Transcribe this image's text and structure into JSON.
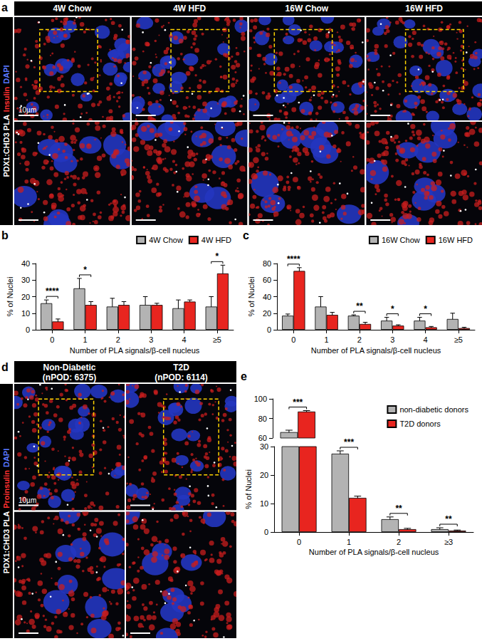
{
  "image_panels": [
    {
      "label": "a",
      "columns": [
        {
          "title": "4W Chow"
        },
        {
          "title": "4W HFD"
        },
        {
          "title": "16W Chow"
        },
        {
          "title": "16W HFD"
        }
      ],
      "side_label": [
        {
          "text": "PDX1:CHD3 PLA",
          "color": "#ffffff"
        },
        {
          "text": "Insulin",
          "color": "#ff3030"
        },
        {
          "text": "DAPI",
          "color": "#5a78ff"
        }
      ],
      "scale_bar": "10µm"
    },
    {
      "label": "d",
      "columns": [
        {
          "title": "Non-Diabetic",
          "subtitle": "(nPOD: 6375)"
        },
        {
          "title": "T2D",
          "subtitle": "(nPOD: 6114)"
        }
      ],
      "side_label": [
        {
          "text": "PDX1:CHD3 PLA",
          "color": "#ffffff"
        },
        {
          "text": "Proinsulin",
          "color": "#ff3030"
        },
        {
          "text": "DAPI",
          "color": "#5a78ff"
        }
      ],
      "scale_bar": "10µm"
    }
  ],
  "chart_data": [
    {
      "label": "b",
      "type": "bar",
      "categories": [
        "0",
        "1",
        "2",
        "3",
        "4",
        "≥5"
      ],
      "xlabel": "Number of PLA signals/β-cell nucleus",
      "ylabel": "% of Nuclei",
      "ylim": [
        0,
        40
      ],
      "yticks": [
        0,
        10,
        20,
        30,
        40
      ],
      "grid": false,
      "legend": "top-right",
      "series": [
        {
          "name": "4W Chow",
          "color": "#b3b3b3",
          "values": [
            16,
            25,
            14,
            15,
            13,
            14
          ],
          "errors": [
            2,
            6,
            5,
            5,
            5,
            6
          ]
        },
        {
          "name": "4W HFD",
          "color": "#e8251f",
          "values": [
            5,
            15,
            15,
            15,
            17,
            34
          ],
          "errors": [
            1.5,
            2,
            2,
            1,
            1,
            5
          ]
        }
      ],
      "annotations": [
        {
          "category": "0",
          "text": "****"
        },
        {
          "category": "1",
          "text": "*"
        },
        {
          "category": "≥5",
          "text": "*"
        }
      ]
    },
    {
      "label": "c",
      "type": "bar",
      "categories": [
        "0",
        "1",
        "2",
        "3",
        "4",
        "≥5"
      ],
      "xlabel": "Number of PLA signals/β-cell nucleus",
      "ylabel": "% of Nuclei",
      "ylim": [
        0,
        80
      ],
      "yticks": [
        0,
        20,
        40,
        60,
        80
      ],
      "grid": false,
      "legend": "top-right",
      "series": [
        {
          "name": "16W Chow",
          "color": "#b3b3b3",
          "values": [
            17,
            28,
            17,
            11,
            11,
            13
          ],
          "errors": [
            2,
            12,
            1,
            4,
            4,
            7
          ]
        },
        {
          "name": "16W HFD",
          "color": "#e8251f",
          "values": [
            71,
            18,
            7,
            5,
            3,
            2
          ],
          "errors": [
            4,
            3,
            2,
            1,
            1,
            1
          ]
        }
      ],
      "annotations": [
        {
          "category": "0",
          "text": "****"
        },
        {
          "category": "2",
          "text": "**"
        },
        {
          "category": "3",
          "text": "*"
        },
        {
          "category": "4",
          "text": "*"
        }
      ]
    },
    {
      "label": "e",
      "type": "bar",
      "categories": [
        "0",
        "1",
        "2",
        "≥3"
      ],
      "xlabel": "Number of PLA signals/β-cell nucleus",
      "ylabel": "% of Nuclei",
      "ylim": [
        0,
        100
      ],
      "ybreak": [
        30,
        60
      ],
      "yticks": [
        0,
        10,
        20,
        30,
        60,
        80,
        100
      ],
      "grid": false,
      "legend": "top-right",
      "series": [
        {
          "name": "non-diabetic donors",
          "color": "#b3b3b3",
          "values": [
            66,
            27.5,
            4.5,
            1
          ],
          "errors": [
            2,
            1,
            0.8,
            0.5
          ]
        },
        {
          "name": "T2D donors",
          "color": "#e8251f",
          "values": [
            87,
            12,
            1,
            0.5
          ],
          "errors": [
            1,
            0.6,
            0.3,
            0.2
          ]
        }
      ],
      "annotations": [
        {
          "category": "0",
          "text": "***"
        },
        {
          "category": "1",
          "text": "***"
        },
        {
          "category": "2",
          "text": "**"
        },
        {
          "category": "≥3",
          "text": "**"
        }
      ]
    }
  ]
}
